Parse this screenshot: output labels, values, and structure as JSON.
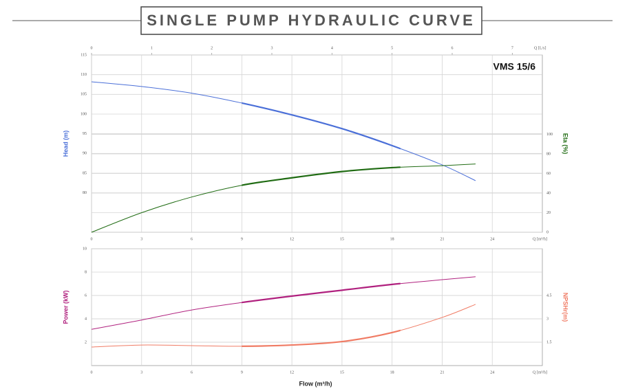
{
  "title": "SINGLE PUMP HYDRAULIC CURVE",
  "chart_data": [
    {
      "type": "line",
      "annotation": "VMS 15/6",
      "x": [
        0,
        3,
        6,
        9,
        12,
        15,
        18,
        21,
        23
      ],
      "xlim": [
        0,
        27
      ],
      "xticks": [
        0,
        3,
        6,
        9,
        12,
        15,
        18,
        21,
        24
      ],
      "xunit_label": "Q [m³/h]",
      "x2lim": [
        0,
        7.5
      ],
      "x2ticks": [
        0,
        1,
        2,
        3,
        4,
        5,
        6,
        7
      ],
      "x2unit_label": "Q [L/s]",
      "ylabel": "Head (m)",
      "ylim": [
        70,
        115
      ],
      "yticks": [
        80,
        85,
        90,
        95,
        100,
        105,
        110,
        115
      ],
      "y2label": "Eta (%)",
      "y2lim": [
        0,
        181
      ],
      "y2ticks": [
        0,
        20,
        40,
        60,
        80,
        100
      ],
      "grid": true,
      "highlight_range": [
        9,
        18.5
      ],
      "series": [
        {
          "name": "Head",
          "color": "#4a6fd8",
          "values": [
            108.2,
            107,
            105.3,
            102.8,
            99.8,
            96.3,
            92,
            87.1,
            83.1
          ]
        },
        {
          "name": "Eta",
          "color": "#1f6b12",
          "axis": "y2",
          "values": [
            0,
            20,
            36,
            48,
            55.6,
            62,
            66,
            68,
            69.7
          ]
        }
      ]
    },
    {
      "type": "line",
      "xlabel": "Flow (m³/h)",
      "x": [
        0,
        3,
        6,
        9,
        12,
        15,
        18,
        21,
        23
      ],
      "xlim": [
        0,
        27
      ],
      "xticks": [
        0,
        3,
        6,
        9,
        12,
        15,
        18,
        21,
        24
      ],
      "xunit_label": "Q [m³/h]",
      "ylabel": "Power (kW)",
      "ylim": [
        0,
        10
      ],
      "yticks": [
        2,
        4,
        6,
        8,
        10
      ],
      "y2label": "NPSHr(m)",
      "y2lim": [
        0,
        7.5
      ],
      "y2ticks": [
        1.5,
        3,
        4.5
      ],
      "grid": true,
      "highlight_range": [
        9,
        18.5
      ],
      "series": [
        {
          "name": "Power",
          "color": "#b0207e",
          "values": [
            3.1,
            3.9,
            4.76,
            5.4,
            5.95,
            6.45,
            6.95,
            7.35,
            7.6
          ]
        },
        {
          "name": "NPSHr",
          "color": "#f07b64",
          "axis": "y2",
          "values": [
            1.19,
            1.32,
            1.28,
            1.24,
            1.32,
            1.54,
            2.12,
            3.09,
            3.93
          ]
        }
      ]
    }
  ]
}
